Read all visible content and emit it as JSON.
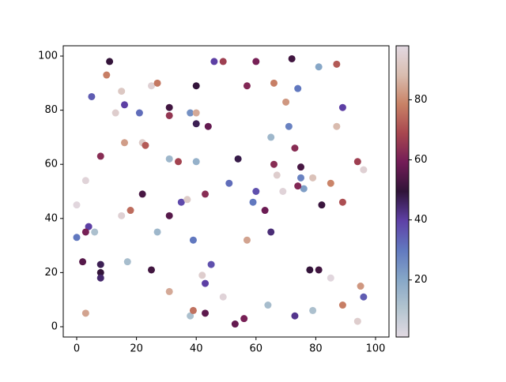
{
  "chart_data": {
    "type": "scatter",
    "colormap": "twilight",
    "x": [
      11,
      10,
      5,
      15,
      16,
      13,
      21,
      25,
      27,
      31,
      31,
      40,
      38,
      40,
      40,
      44,
      46,
      49,
      60,
      57,
      66,
      72,
      74,
      81,
      87,
      70,
      89,
      87,
      71,
      65,
      73,
      75,
      66,
      67,
      75,
      76,
      74,
      69,
      79,
      85,
      82,
      89,
      94,
      96,
      8,
      16,
      22,
      23,
      31,
      34,
      40,
      54,
      51,
      60,
      59,
      63,
      65,
      57,
      22,
      18,
      15,
      0,
      3,
      4,
      3,
      0,
      6,
      27,
      31,
      35,
      37,
      43,
      39,
      2,
      8,
      8,
      8,
      17,
      25,
      31,
      3,
      38,
      39,
      43,
      42,
      43,
      45,
      49,
      53,
      56,
      64,
      73,
      78,
      81,
      79,
      85,
      89,
      94,
      95,
      96
    ],
    "values": [
      98,
      93,
      85,
      87,
      82,
      79,
      79,
      89,
      90,
      81,
      78,
      89,
      79,
      79,
      75,
      74,
      98,
      98,
      98,
      89,
      90,
      99,
      88,
      96,
      97,
      83,
      81,
      74,
      74,
      70,
      66,
      59,
      60,
      56,
      55,
      51,
      52,
      50,
      55,
      53,
      45,
      46,
      61,
      58,
      63,
      68,
      68,
      67,
      62,
      61,
      61,
      62,
      53,
      50,
      46,
      43,
      35,
      32,
      49,
      43,
      41,
      45,
      54,
      37,
      35,
      33,
      35,
      35,
      41,
      46,
      47,
      49,
      32,
      24,
      23,
      20,
      18,
      24,
      21,
      13,
      5,
      4,
      6,
      5,
      19,
      16,
      23,
      11,
      1,
      3,
      8,
      4,
      21,
      21,
      6,
      18,
      8,
      2,
      15,
      11
    ],
    "color_values": [
      50,
      78,
      35,
      92,
      40,
      94,
      32,
      95,
      77,
      52,
      65,
      50,
      25,
      85,
      47,
      57,
      40,
      67,
      60,
      62,
      78,
      52,
      30,
      20,
      72,
      82,
      40,
      88,
      28,
      15,
      63,
      53,
      63,
      94,
      28,
      22,
      62,
      96,
      90,
      79,
      51,
      70,
      67,
      95,
      63,
      83,
      93,
      72,
      15,
      68,
      17,
      48,
      32,
      37,
      30,
      58,
      44,
      84,
      53,
      75,
      95,
      97,
      96,
      40,
      60,
      30,
      12,
      15,
      55,
      38,
      93,
      63,
      30,
      55,
      47,
      50,
      45,
      13,
      52,
      85,
      84,
      12,
      76,
      56,
      94,
      40,
      37,
      96,
      57,
      60,
      13,
      42,
      50,
      52,
      12,
      97,
      78,
      94,
      82,
      35
    ],
    "xlim": [
      -4.5,
      104.5
    ],
    "ylim": [
      -3.8,
      103.8
    ],
    "xticks": [
      0,
      20,
      40,
      60,
      80,
      100
    ],
    "yticks": [
      0,
      20,
      40,
      60,
      80,
      100
    ],
    "clim": [
      1,
      98
    ],
    "cticks": [
      20,
      40,
      60,
      80
    ]
  }
}
